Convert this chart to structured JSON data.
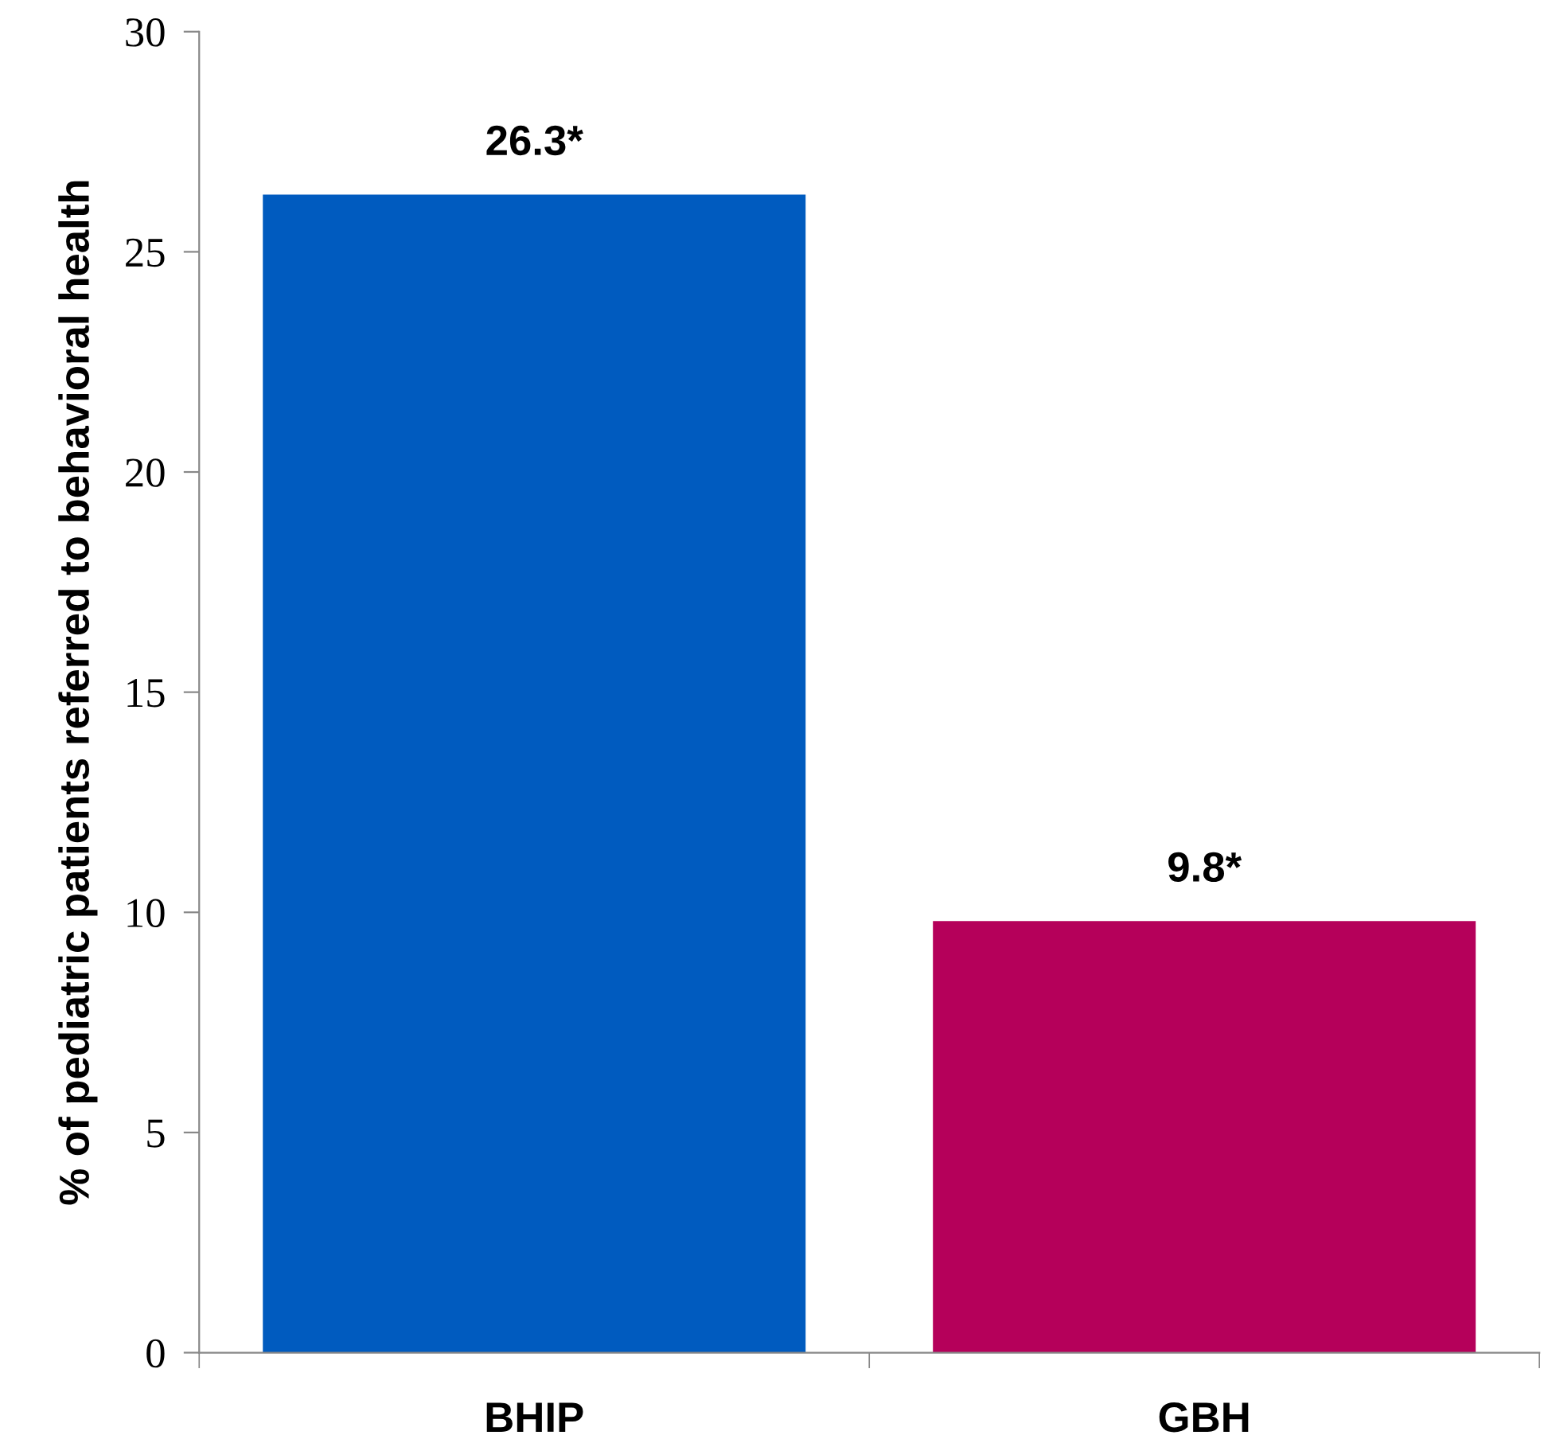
{
  "chart_data": {
    "type": "bar",
    "ylabel": "% of pediatric patients referred to behavioral health",
    "categories": [
      "BHIP",
      "GBH"
    ],
    "values": [
      26.3,
      9.8
    ],
    "colors": [
      "#005bbf",
      "#b5005a"
    ],
    "value_labels": [
      "26.3*",
      "9.8*"
    ],
    "ylim": [
      0,
      30
    ],
    "yticks": [
      0,
      5,
      10,
      15,
      20,
      25,
      30
    ],
    "grid": false,
    "legend": false
  }
}
